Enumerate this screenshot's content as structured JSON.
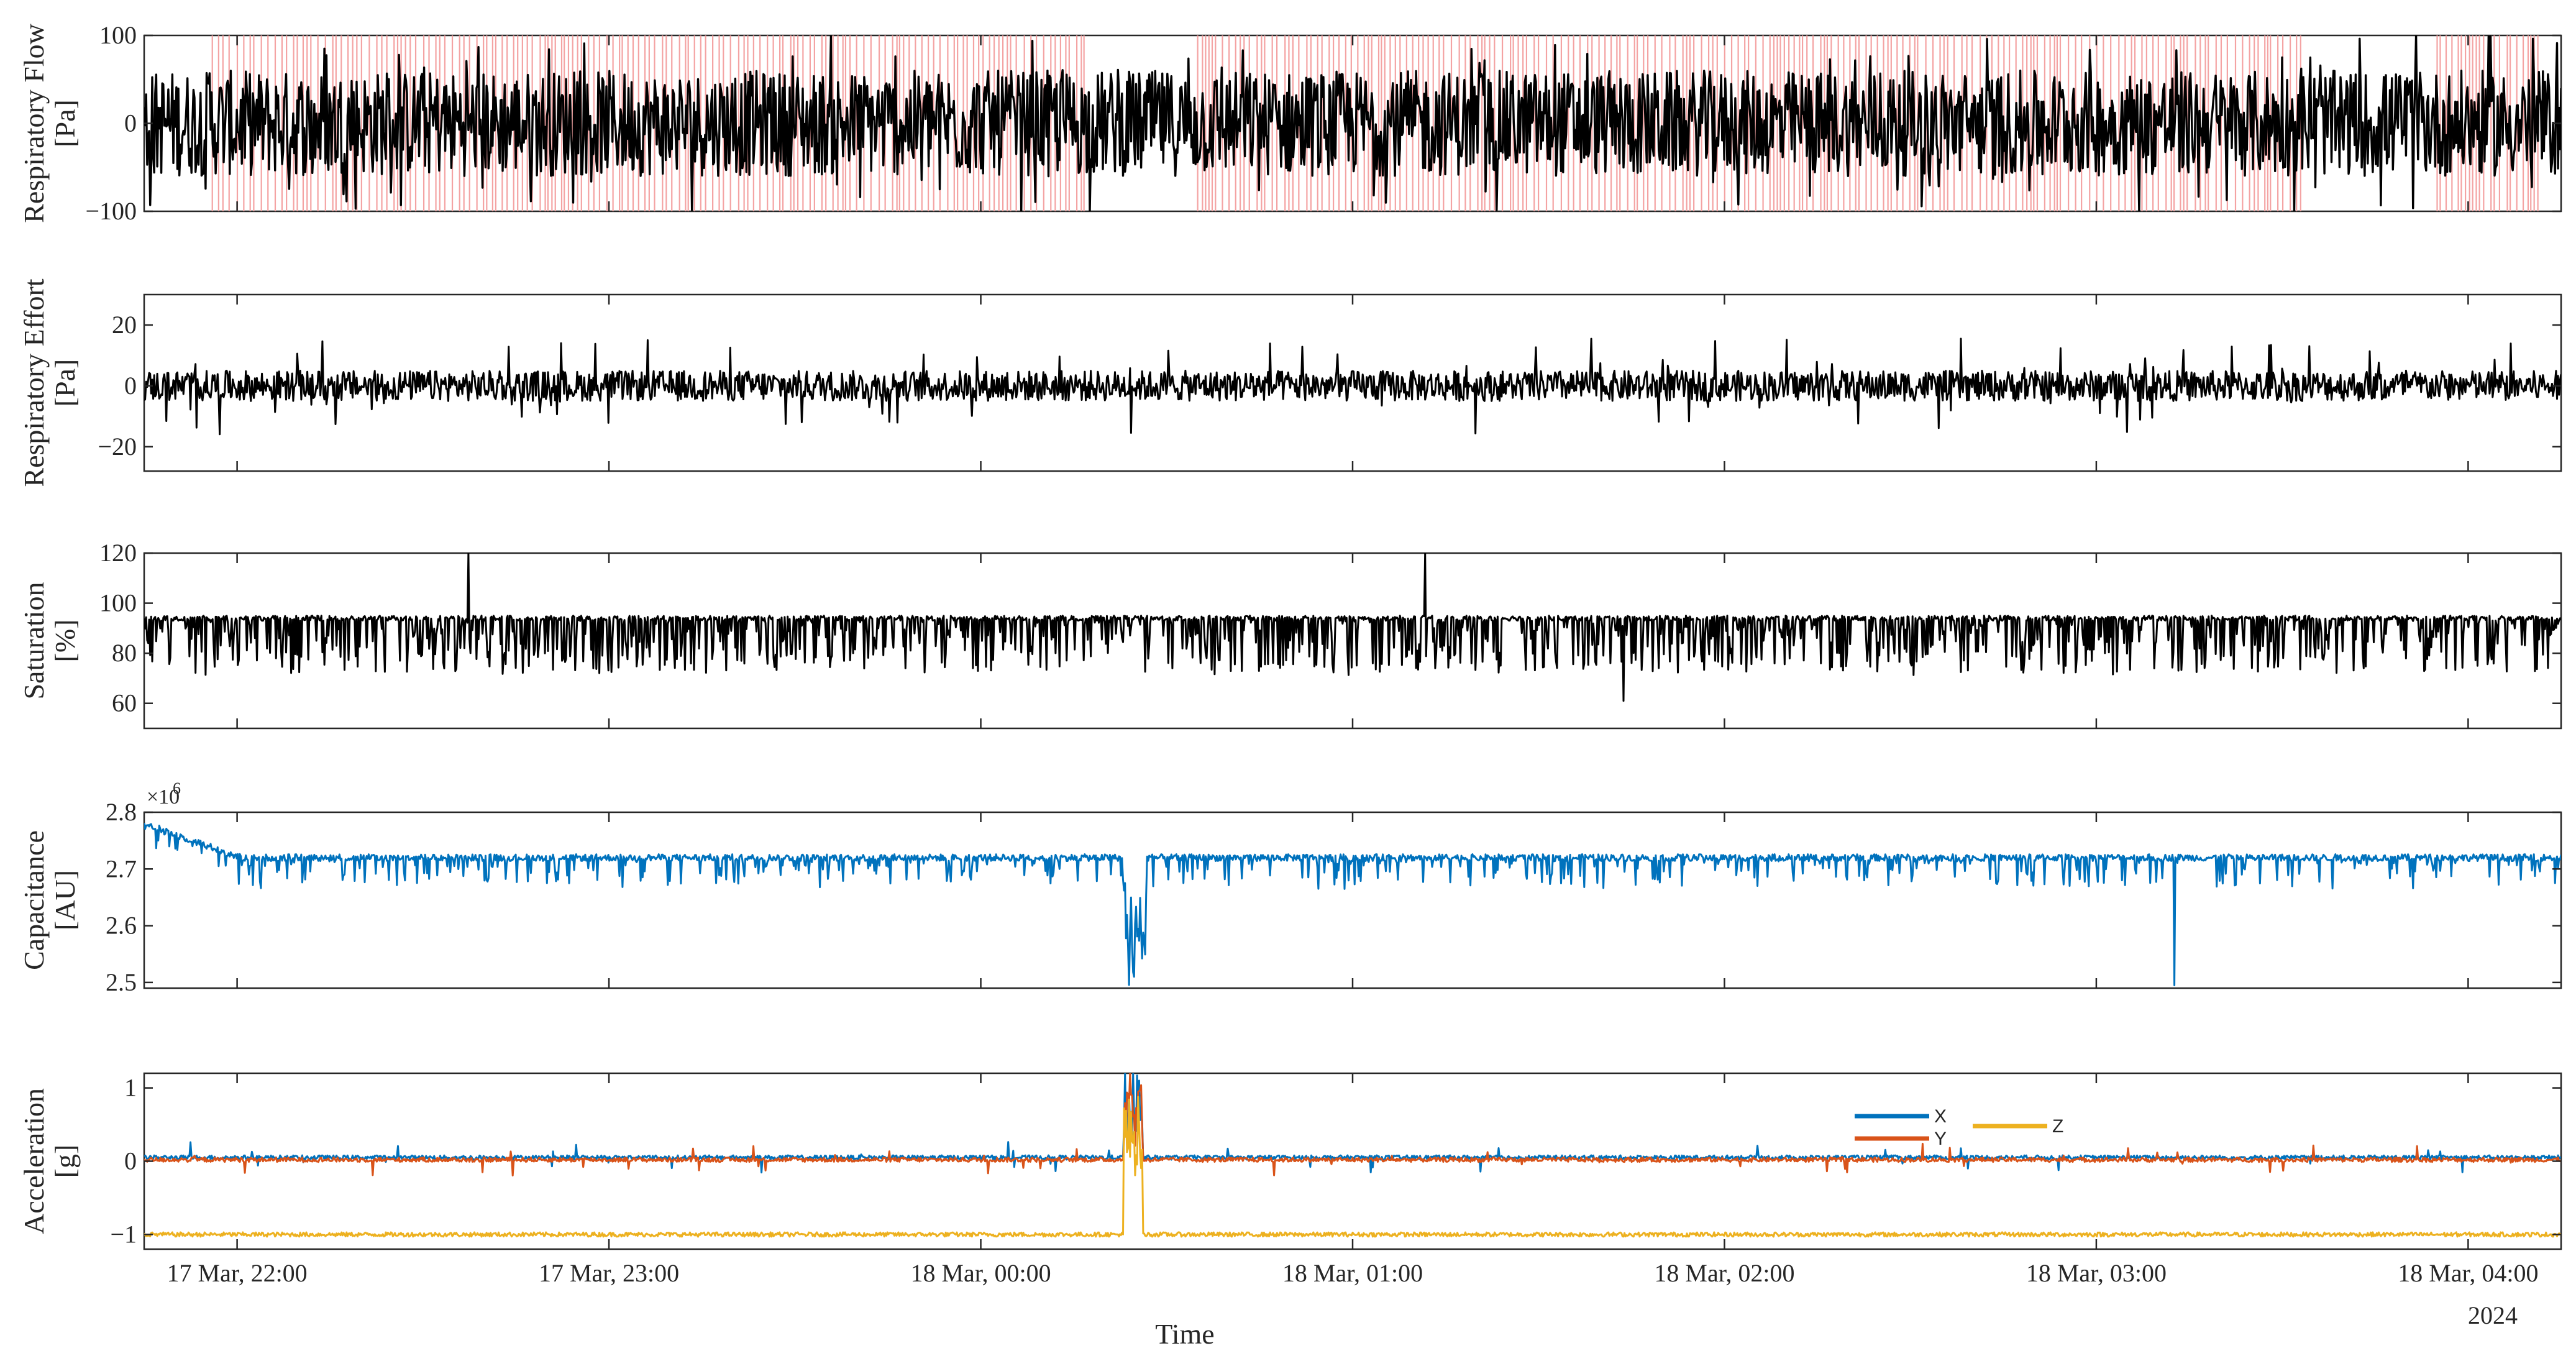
{
  "chart_data": {
    "type": "line",
    "x_axis": {
      "label": "Time",
      "start": "2024-03-17 21:45",
      "end": "2024-03-18 04:15",
      "tick_labels": [
        "17 Mar, 22:00",
        "17 Mar, 23:00",
        "18 Mar, 00:00",
        "18 Mar, 01:00",
        "18 Mar, 02:00",
        "18 Mar, 03:00",
        "18 Mar, 04:00"
      ],
      "year_label": "2024"
    },
    "panels": [
      {
        "id": "flow",
        "ylabel": [
          "Respiratory Flow",
          "[Pa]"
        ],
        "ylim": [
          -100,
          100
        ],
        "yticks": [
          -100,
          0,
          100
        ],
        "ytick_labels": [
          "−100",
          "0",
          "100"
        ],
        "series": [
          {
            "color": "#000000",
            "baseline": 0,
            "typical_amplitude": 60
          }
        ],
        "shaded_events": {
          "color": "#f4a3a3",
          "windows": [
            [
              "2024-03-17 21:56",
              "2024-03-18 00:17"
            ],
            [
              "2024-03-18 00:35",
              "2024-03-18 03:33"
            ],
            [
              "2024-03-18 03:55",
              "2024-03-18 04:12"
            ]
          ]
        }
      },
      {
        "id": "effort",
        "ylabel": [
          "Respiratory Effort",
          "[Pa]"
        ],
        "ylim": [
          -28,
          30
        ],
        "yticks": [
          -20,
          0,
          20
        ],
        "ytick_labels": [
          "−20",
          "0",
          "20"
        ],
        "series": [
          {
            "color": "#000000",
            "baseline": 0,
            "typical_amplitude": 5
          }
        ]
      },
      {
        "id": "saturation",
        "ylabel": [
          "Saturation",
          "[%]"
        ],
        "ylim": [
          50,
          120
        ],
        "yticks": [
          60,
          80,
          100,
          120
        ],
        "ytick_labels": [
          "60",
          "80",
          "100",
          "120"
        ],
        "series": [
          {
            "color": "#000000",
            "baseline": 94,
            "min": 61,
            "max": 120
          }
        ]
      },
      {
        "id": "capacitance",
        "ylabel": [
          "Capacitance",
          "[AU]"
        ],
        "ylim": [
          2.49,
          2.8
        ],
        "yticks": [
          2.5,
          2.6,
          2.7,
          2.8
        ],
        "ytick_labels": [
          "2.5",
          "2.6",
          "2.7",
          "2.8"
        ],
        "exponent_label": "×10",
        "exponent_power": "6",
        "series": [
          {
            "color": "#0072bd",
            "start_value": 2.78,
            "baseline": 2.72,
            "min": 2.49
          }
        ]
      },
      {
        "id": "acceleration",
        "ylabel": [
          "Acceleration",
          "[g]"
        ],
        "ylim": [
          -1.2,
          1.2
        ],
        "yticks": [
          -1,
          0,
          1
        ],
        "ytick_labels": [
          "−1",
          "0",
          "1"
        ],
        "series": [
          {
            "name": "X",
            "color": "#0072bd",
            "baseline": 0.05
          },
          {
            "name": "Y",
            "color": "#d95319",
            "baseline": 0.02
          },
          {
            "name": "Z",
            "color": "#edb120",
            "baseline": -1.0
          }
        ]
      }
    ]
  }
}
